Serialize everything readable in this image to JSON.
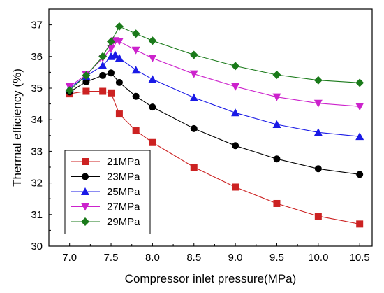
{
  "chart_data": {
    "type": "line",
    "xlabel": "Compressor inlet pressure(MPa)",
    "ylabel": "Thermal efficiency  (%)",
    "xlim": [
      6.75,
      10.65
    ],
    "ylim": [
      30,
      37.5
    ],
    "x_ticks": [
      7.0,
      7.5,
      8.0,
      8.5,
      9.0,
      9.5,
      10.0,
      10.5
    ],
    "x_tick_labels": [
      "7.0",
      "7.5",
      "8.0",
      "8.5",
      "9.0",
      "9.5",
      "10.0",
      "10.5"
    ],
    "y_ticks": [
      30,
      31,
      32,
      33,
      34,
      35,
      36,
      37
    ],
    "y_tick_labels": [
      "30",
      "31",
      "32",
      "33",
      "34",
      "35",
      "36",
      "37"
    ],
    "grid": false,
    "legend_position": "bottom-left",
    "series": [
      {
        "name": "21MPa",
        "color": "#cc2222",
        "marker": "square",
        "points": [
          [
            7.0,
            34.82
          ],
          [
            7.2,
            34.9
          ],
          [
            7.4,
            34.9
          ],
          [
            7.5,
            34.85
          ],
          [
            7.6,
            34.18
          ],
          [
            7.8,
            33.65
          ],
          [
            8.0,
            33.28
          ],
          [
            8.5,
            32.5
          ],
          [
            9.0,
            31.87
          ],
          [
            9.5,
            31.35
          ],
          [
            10.0,
            30.95
          ],
          [
            10.5,
            30.7
          ]
        ]
      },
      {
        "name": "23MPa",
        "color": "#000000",
        "marker": "circle",
        "points": [
          [
            7.0,
            34.88
          ],
          [
            7.2,
            35.2
          ],
          [
            7.4,
            35.4
          ],
          [
            7.5,
            35.48
          ],
          [
            7.6,
            35.18
          ],
          [
            7.8,
            34.74
          ],
          [
            8.0,
            34.4
          ],
          [
            8.5,
            33.72
          ],
          [
            9.0,
            33.18
          ],
          [
            9.5,
            32.76
          ],
          [
            10.0,
            32.45
          ],
          [
            10.5,
            32.27
          ]
        ]
      },
      {
        "name": "25MPa",
        "color": "#1a1ae6",
        "marker": "triangle-up",
        "points": [
          [
            7.0,
            35.0
          ],
          [
            7.2,
            35.38
          ],
          [
            7.4,
            35.72
          ],
          [
            7.5,
            36.0
          ],
          [
            7.55,
            36.05
          ],
          [
            7.6,
            35.95
          ],
          [
            7.8,
            35.57
          ],
          [
            8.0,
            35.28
          ],
          [
            8.5,
            34.7
          ],
          [
            9.0,
            34.22
          ],
          [
            9.5,
            33.85
          ],
          [
            10.0,
            33.6
          ],
          [
            10.5,
            33.47
          ]
        ]
      },
      {
        "name": "27MPa",
        "color": "#cc22cc",
        "marker": "triangle-down",
        "points": [
          [
            7.0,
            35.05
          ],
          [
            7.2,
            35.42
          ],
          [
            7.4,
            35.95
          ],
          [
            7.5,
            36.25
          ],
          [
            7.55,
            36.5
          ],
          [
            7.6,
            36.48
          ],
          [
            7.8,
            36.2
          ],
          [
            8.0,
            35.95
          ],
          [
            8.5,
            35.45
          ],
          [
            9.0,
            35.05
          ],
          [
            9.5,
            34.72
          ],
          [
            10.0,
            34.52
          ],
          [
            10.5,
            34.42
          ]
        ]
      },
      {
        "name": "29MPa",
        "color": "#1a7a1a",
        "marker": "diamond",
        "points": [
          [
            7.0,
            34.93
          ],
          [
            7.2,
            35.4
          ],
          [
            7.4,
            36.0
          ],
          [
            7.5,
            36.47
          ],
          [
            7.6,
            36.95
          ],
          [
            7.8,
            36.72
          ],
          [
            8.0,
            36.5
          ],
          [
            8.5,
            36.05
          ],
          [
            9.0,
            35.7
          ],
          [
            9.5,
            35.42
          ],
          [
            10.0,
            35.25
          ],
          [
            10.5,
            35.17
          ]
        ]
      }
    ]
  }
}
